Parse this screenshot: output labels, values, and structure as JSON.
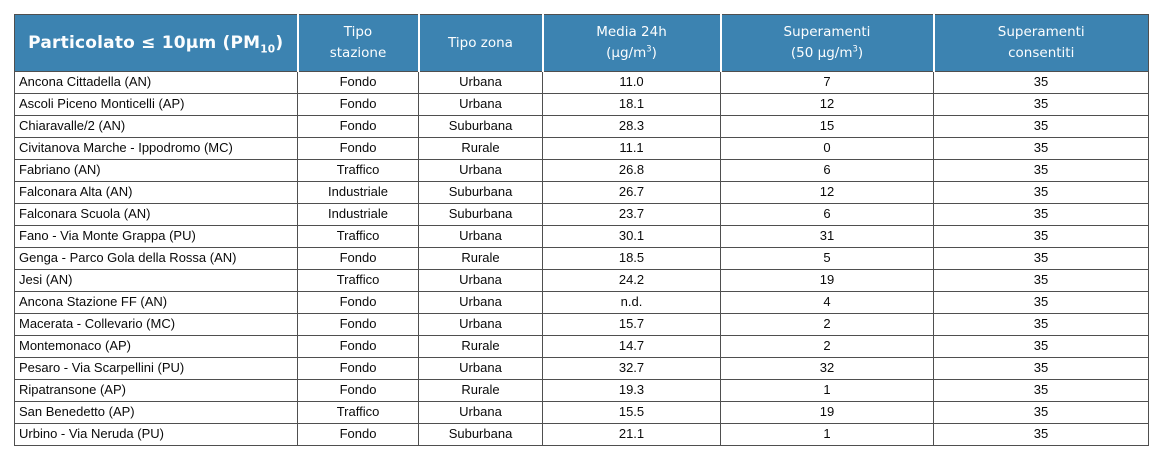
{
  "table": {
    "headers": {
      "particolato": {
        "pre": "Particolato ≤ 10µm (PM",
        "sub": "10",
        "post": ")"
      },
      "tipo_stazione": {
        "line1": "Tipo",
        "line2": "stazione"
      },
      "tipo_zona": {
        "label": "Tipo zona"
      },
      "media_24h": {
        "line1": "Media 24h",
        "open": "(µg/m",
        "sup": "3",
        "close": ")"
      },
      "superamenti": {
        "line1": "Superamenti",
        "open": "(50 µg/m",
        "sup": "3",
        "close": ")"
      },
      "consentiti": {
        "line1": "Superamenti",
        "line2": "consentiti"
      }
    },
    "colors": {
      "header_background": "#3C83B1",
      "header_text": "#FBFDFE",
      "grid_border": "#4f4f4f",
      "header_separator": "#ffffff"
    },
    "rows": [
      {
        "station": "Ancona Cittadella (AN)",
        "tipo_stazione": "Fondo",
        "tipo_zona": "Urbana",
        "media_24h": "11.0",
        "superamenti": "7",
        "consentiti": "35"
      },
      {
        "station": "Ascoli Piceno Monticelli (AP)",
        "tipo_stazione": "Fondo",
        "tipo_zona": "Urbana",
        "media_24h": "18.1",
        "superamenti": "12",
        "consentiti": "35"
      },
      {
        "station": "Chiaravalle/2 (AN)",
        "tipo_stazione": "Fondo",
        "tipo_zona": "Suburbana",
        "media_24h": "28.3",
        "superamenti": "15",
        "consentiti": "35"
      },
      {
        "station": "Civitanova Marche - Ippodromo (MC)",
        "tipo_stazione": "Fondo",
        "tipo_zona": "Rurale",
        "media_24h": "11.1",
        "superamenti": "0",
        "consentiti": "35"
      },
      {
        "station": "Fabriano (AN)",
        "tipo_stazione": "Traffico",
        "tipo_zona": "Urbana",
        "media_24h": "26.8",
        "superamenti": "6",
        "consentiti": "35"
      },
      {
        "station": "Falconara Alta (AN)",
        "tipo_stazione": "Industriale",
        "tipo_zona": "Suburbana",
        "media_24h": "26.7",
        "superamenti": "12",
        "consentiti": "35"
      },
      {
        "station": "Falconara Scuola (AN)",
        "tipo_stazione": "Industriale",
        "tipo_zona": "Suburbana",
        "media_24h": "23.7",
        "superamenti": "6",
        "consentiti": "35"
      },
      {
        "station": "Fano - Via Monte Grappa (PU)",
        "tipo_stazione": "Traffico",
        "tipo_zona": "Urbana",
        "media_24h": "30.1",
        "superamenti": "31",
        "consentiti": "35"
      },
      {
        "station": "Genga - Parco Gola della Rossa (AN)",
        "tipo_stazione": "Fondo",
        "tipo_zona": "Rurale",
        "media_24h": "18.5",
        "superamenti": "5",
        "consentiti": "35"
      },
      {
        "station": "Jesi (AN)",
        "tipo_stazione": "Traffico",
        "tipo_zona": "Urbana",
        "media_24h": "24.2",
        "superamenti": "19",
        "consentiti": "35"
      },
      {
        "station": "Ancona Stazione FF (AN)",
        "tipo_stazione": "Fondo",
        "tipo_zona": "Urbana",
        "media_24h": "n.d.",
        "superamenti": "4",
        "consentiti": "35"
      },
      {
        "station": "Macerata - Collevario (MC)",
        "tipo_stazione": "Fondo",
        "tipo_zona": "Urbana",
        "media_24h": "15.7",
        "superamenti": "2",
        "consentiti": "35"
      },
      {
        "station": "Montemonaco (AP)",
        "tipo_stazione": "Fondo",
        "tipo_zona": "Rurale",
        "media_24h": "14.7",
        "superamenti": "2",
        "consentiti": "35"
      },
      {
        "station": "Pesaro - Via Scarpellini (PU)",
        "tipo_stazione": "Fondo",
        "tipo_zona": "Urbana",
        "media_24h": "32.7",
        "superamenti": "32",
        "consentiti": "35"
      },
      {
        "station": "Ripatransone (AP)",
        "tipo_stazione": "Fondo",
        "tipo_zona": "Rurale",
        "media_24h": "19.3",
        "superamenti": "1",
        "consentiti": "35"
      },
      {
        "station": "San Benedetto (AP)",
        "tipo_stazione": "Traffico",
        "tipo_zona": "Urbana",
        "media_24h": "15.5",
        "superamenti": "19",
        "consentiti": "35"
      },
      {
        "station": "Urbino - Via Neruda (PU)",
        "tipo_stazione": "Fondo",
        "tipo_zona": "Suburbana",
        "media_24h": "21.1",
        "superamenti": "1",
        "consentiti": "35"
      }
    ]
  }
}
